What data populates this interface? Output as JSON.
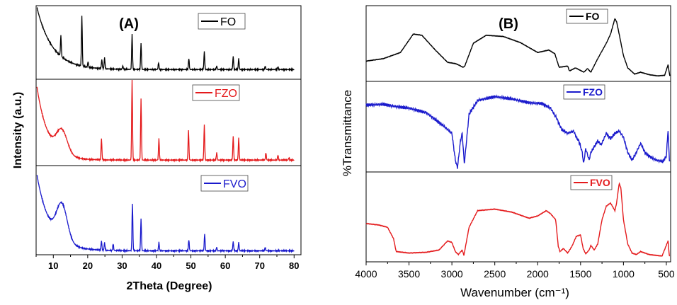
{
  "chart_data": [
    {
      "type": "line",
      "panel_label": "(A)",
      "xlabel": "2Theta (Degree)",
      "ylabel": "Intensity (a.u.)",
      "xlim": [
        5,
        82
      ],
      "xticks": [
        10,
        20,
        30,
        40,
        50,
        60,
        70,
        80
      ],
      "layout": "stacked",
      "series": [
        {
          "name": "FO",
          "color": "#000000",
          "baseline": 0.12,
          "decay": 1.0,
          "decay_rate": 0.22,
          "shoulder": 0.0,
          "peaks": [
            [
              12.2,
              0.3
            ],
            [
              18.3,
              0.72
            ],
            [
              20.1,
              0.08
            ],
            [
              24.1,
              0.13
            ],
            [
              24.9,
              0.16
            ],
            [
              30.2,
              0.05
            ],
            [
              32.9,
              0.5
            ],
            [
              35.5,
              0.38
            ],
            [
              40.6,
              0.1
            ],
            [
              49.4,
              0.16
            ],
            [
              53.9,
              0.26
            ],
            [
              57.5,
              0.05
            ],
            [
              62.3,
              0.19
            ],
            [
              63.9,
              0.16
            ],
            [
              71.6,
              0.05
            ],
            [
              75.3,
              0.04
            ]
          ]
        },
        {
          "name": "FZO",
          "color": "#e41a1c",
          "baseline": 0.05,
          "decay": 1.0,
          "decay_rate": 0.3,
          "shoulder": 0.28,
          "peaks": [
            [
              24.0,
              0.26
            ],
            [
              32.9,
              1.0
            ],
            [
              35.5,
              0.75
            ],
            [
              40.7,
              0.26
            ],
            [
              49.3,
              0.36
            ],
            [
              53.9,
              0.43
            ],
            [
              57.5,
              0.09
            ],
            [
              62.3,
              0.29
            ],
            [
              63.9,
              0.27
            ],
            [
              71.8,
              0.09
            ],
            [
              75.3,
              0.06
            ],
            [
              78.5,
              0.03
            ]
          ]
        },
        {
          "name": "FVO",
          "color": "#1a1acc",
          "baseline": 0.03,
          "decay": 1.0,
          "decay_rate": 0.25,
          "shoulder": 0.42,
          "peaks": [
            [
              24.0,
              0.11
            ],
            [
              24.9,
              0.09
            ],
            [
              27.4,
              0.08
            ],
            [
              33.0,
              0.56
            ],
            [
              35.5,
              0.38
            ],
            [
              40.7,
              0.1
            ],
            [
              49.4,
              0.13
            ],
            [
              54.0,
              0.2
            ],
            [
              57.5,
              0.04
            ],
            [
              62.3,
              0.11
            ],
            [
              63.9,
              0.1
            ],
            [
              71.6,
              0.04
            ]
          ]
        }
      ]
    },
    {
      "type": "line",
      "panel_label": "(B)",
      "xlabel": "Wavenumber (cm⁻¹)",
      "ylabel": "%Transmittance",
      "xlim": [
        4000,
        450
      ],
      "xticks": [
        4000,
        3500,
        3000,
        2500,
        2000,
        1500,
        1000,
        500
      ],
      "layout": "stacked",
      "series": [
        {
          "name": "FO",
          "color": "#000000",
          "points": [
            [
              4000,
              0.26
            ],
            [
              3800,
              0.3
            ],
            [
              3600,
              0.4
            ],
            [
              3450,
              0.7
            ],
            [
              3350,
              0.68
            ],
            [
              3200,
              0.45
            ],
            [
              3050,
              0.24
            ],
            [
              2960,
              0.22
            ],
            [
              2925,
              0.2
            ],
            [
              2870,
              0.16
            ],
            [
              2850,
              0.18
            ],
            [
              2750,
              0.55
            ],
            [
              2600,
              0.68
            ],
            [
              2400,
              0.66
            ],
            [
              2200,
              0.56
            ],
            [
              2000,
              0.4
            ],
            [
              1870,
              0.44
            ],
            [
              1800,
              0.38
            ],
            [
              1750,
              0.16
            ],
            [
              1650,
              0.18
            ],
            [
              1630,
              0.1
            ],
            [
              1560,
              0.15
            ],
            [
              1460,
              0.08
            ],
            [
              1420,
              0.14
            ],
            [
              1380,
              0.08
            ],
            [
              1300,
              0.3
            ],
            [
              1200,
              0.55
            ],
            [
              1150,
              0.7
            ],
            [
              1100,
              0.95
            ],
            [
              1080,
              0.9
            ],
            [
              1050,
              0.7
            ],
            [
              1000,
              0.35
            ],
            [
              950,
              0.15
            ],
            [
              870,
              0.05
            ],
            [
              800,
              0.08
            ],
            [
              700,
              0.04
            ],
            [
              600,
              0.02
            ],
            [
              520,
              0.03
            ],
            [
              480,
              0.2
            ],
            [
              460,
              0.02
            ]
          ]
        },
        {
          "name": "FZO",
          "color": "#1a1acc",
          "points": [
            [
              4000,
              0.82
            ],
            [
              3800,
              0.83
            ],
            [
              3650,
              0.8
            ],
            [
              3500,
              0.78
            ],
            [
              3300,
              0.72
            ],
            [
              3100,
              0.55
            ],
            [
              3000,
              0.45
            ],
            [
              2960,
              0.1
            ],
            [
              2935,
              0.0
            ],
            [
              2900,
              0.35
            ],
            [
              2880,
              0.45
            ],
            [
              2855,
              0.05
            ],
            [
              2800,
              0.7
            ],
            [
              2700,
              0.88
            ],
            [
              2500,
              0.93
            ],
            [
              2300,
              0.9
            ],
            [
              2100,
              0.85
            ],
            [
              1950,
              0.84
            ],
            [
              1850,
              0.78
            ],
            [
              1780,
              0.65
            ],
            [
              1720,
              0.5
            ],
            [
              1650,
              0.45
            ],
            [
              1580,
              0.48
            ],
            [
              1550,
              0.4
            ],
            [
              1520,
              0.35
            ],
            [
              1480,
              0.2
            ],
            [
              1465,
              0.05
            ],
            [
              1440,
              0.25
            ],
            [
              1400,
              0.1
            ],
            [
              1380,
              0.2
            ],
            [
              1300,
              0.35
            ],
            [
              1260,
              0.3
            ],
            [
              1200,
              0.45
            ],
            [
              1150,
              0.38
            ],
            [
              1100,
              0.45
            ],
            [
              1050,
              0.48
            ],
            [
              1000,
              0.4
            ],
            [
              950,
              0.2
            ],
            [
              900,
              0.1
            ],
            [
              850,
              0.2
            ],
            [
              800,
              0.32
            ],
            [
              750,
              0.2
            ],
            [
              700,
              0.15
            ],
            [
              620,
              0.1
            ],
            [
              540,
              0.08
            ],
            [
              500,
              0.15
            ],
            [
              480,
              0.5
            ],
            [
              465,
              0.1
            ]
          ]
        },
        {
          "name": "FVO",
          "color": "#e41a1c",
          "points": [
            [
              4000,
              0.45
            ],
            [
              3850,
              0.43
            ],
            [
              3750,
              0.4
            ],
            [
              3680,
              0.25
            ],
            [
              3650,
              0.08
            ],
            [
              3500,
              0.06
            ],
            [
              3300,
              0.07
            ],
            [
              3150,
              0.1
            ],
            [
              3050,
              0.22
            ],
            [
              3000,
              0.2
            ],
            [
              2960,
              0.08
            ],
            [
              2925,
              0.04
            ],
            [
              2880,
              0.1
            ],
            [
              2860,
              0.03
            ],
            [
              2800,
              0.4
            ],
            [
              2700,
              0.62
            ],
            [
              2500,
              0.64
            ],
            [
              2300,
              0.6
            ],
            [
              2100,
              0.52
            ],
            [
              2000,
              0.55
            ],
            [
              1900,
              0.62
            ],
            [
              1850,
              0.58
            ],
            [
              1790,
              0.5
            ],
            [
              1760,
              0.15
            ],
            [
              1740,
              0.08
            ],
            [
              1700,
              0.12
            ],
            [
              1650,
              0.06
            ],
            [
              1600,
              0.15
            ],
            [
              1550,
              0.28
            ],
            [
              1500,
              0.3
            ],
            [
              1470,
              0.12
            ],
            [
              1440,
              0.05
            ],
            [
              1400,
              0.1
            ],
            [
              1380,
              0.16
            ],
            [
              1340,
              0.1
            ],
            [
              1300,
              0.18
            ],
            [
              1250,
              0.5
            ],
            [
              1200,
              0.68
            ],
            [
              1150,
              0.72
            ],
            [
              1100,
              0.62
            ],
            [
              1080,
              0.72
            ],
            [
              1050,
              0.98
            ],
            [
              1030,
              0.92
            ],
            [
              1000,
              0.5
            ],
            [
              950,
              0.18
            ],
            [
              900,
              0.06
            ],
            [
              850,
              0.04
            ],
            [
              800,
              0.08
            ],
            [
              700,
              0.04
            ],
            [
              550,
              0.02
            ],
            [
              480,
              0.22
            ],
            [
              465,
              0.02
            ]
          ]
        }
      ]
    }
  ]
}
